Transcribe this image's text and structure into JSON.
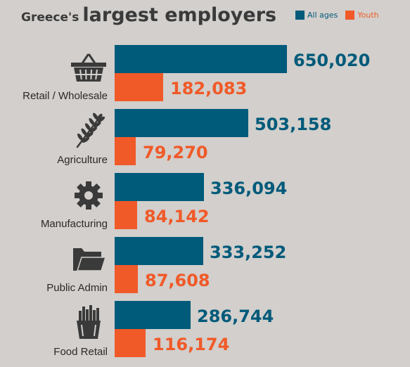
{
  "title_prefix": "Greece's",
  "title_main": "largest employers",
  "colors": {
    "all_ages": "#005a7a",
    "youth": "#f05a28",
    "icon": "#3a3a3a",
    "background": "#d2cfcc"
  },
  "legend": [
    {
      "label": "All ages",
      "color": "#005a7a"
    },
    {
      "label": "Youth",
      "color": "#f05a28"
    }
  ],
  "chart_data": {
    "type": "bar",
    "orientation": "horizontal",
    "title": "Greece's largest employers",
    "categories": [
      "Retail / Wholesale",
      "Agriculture",
      "Manufacturing",
      "Public Admin",
      "Food Retail"
    ],
    "icons": [
      "basket-icon",
      "wheat-icon",
      "gear-icon",
      "folder-icon",
      "fries-icon"
    ],
    "series": [
      {
        "name": "All ages",
        "values": [
          650020,
          503158,
          336094,
          333252,
          286744
        ],
        "labels": [
          "650,020",
          "503,158",
          "336,094",
          "333,252",
          "286,744"
        ]
      },
      {
        "name": "Youth",
        "values": [
          182083,
          79270,
          84142,
          87608,
          116174
        ],
        "labels": [
          "182,083",
          "79,270",
          "84,142",
          "87,608",
          "116,174"
        ]
      }
    ],
    "legend_position": "top-right",
    "grid": false
  }
}
